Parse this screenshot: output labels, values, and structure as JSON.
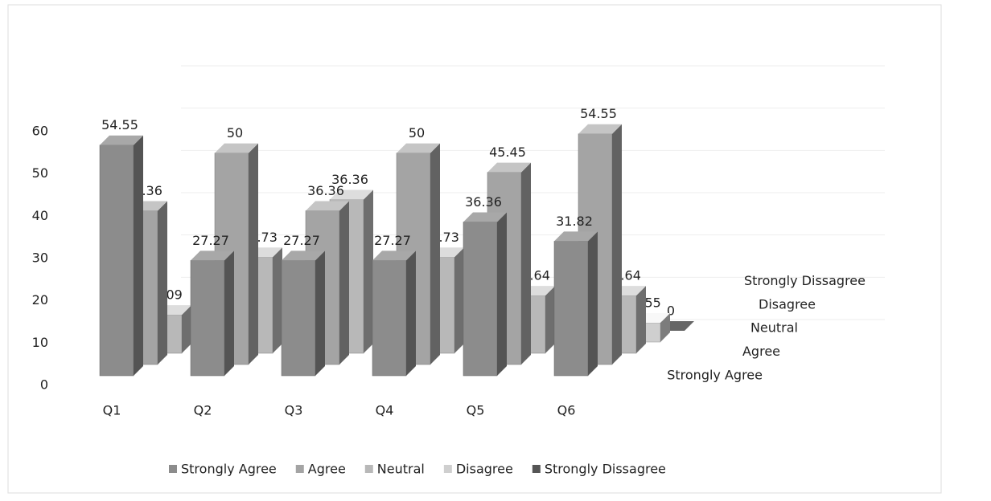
{
  "chart_data": {
    "type": "bar3d",
    "categories": [
      "Q1",
      "Q2",
      "Q3",
      "Q4",
      "Q5",
      "Q6"
    ],
    "series": [
      {
        "name": "Strongly Agree",
        "color": "#8c8c8c",
        "values": [
          54.55,
          27.27,
          27.27,
          27.27,
          36.36,
          31.82
        ]
      },
      {
        "name": "Agree",
        "color": "#a4a4a4",
        "values": [
          36.36,
          50,
          36.36,
          50,
          45.45,
          54.55
        ]
      },
      {
        "name": "Neutral",
        "color": "#b8b8b8",
        "values": [
          9.09,
          22.73,
          36.36,
          22.73,
          13.64,
          13.64
        ]
      },
      {
        "name": "Disagree",
        "color": "#cfcfcf",
        "values": [
          0,
          0,
          0,
          0,
          0,
          4.55
        ]
      },
      {
        "name": "Strongly Dissagree",
        "color": "#555555",
        "values": [
          0,
          0,
          0,
          0,
          0,
          0
        ]
      }
    ],
    "ylim": [
      0,
      60
    ],
    "yticks": [
      0,
      10,
      20,
      30,
      40,
      50,
      60
    ],
    "legend": "bottom"
  }
}
